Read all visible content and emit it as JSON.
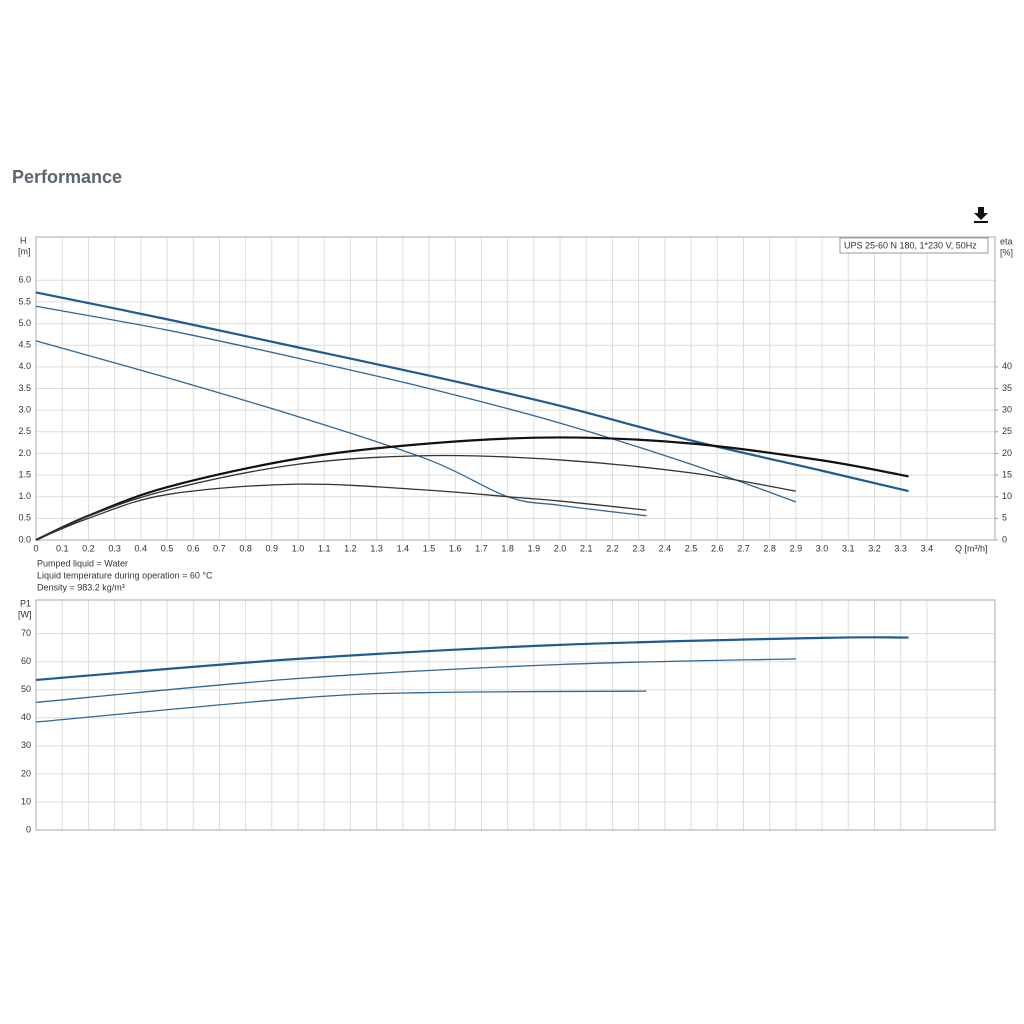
{
  "page": {
    "title": "Performance",
    "notes": [
      "Pumped liquid = Water",
      "Liquid temperature during operation = 60 °C",
      "Density = 983.2 kg/m³"
    ]
  },
  "chart_data": [
    {
      "type": "line",
      "annotation": "UPS 25-60 N 180, 1*230 V, 50Hz",
      "ylabel": "H",
      "yunit": "[m]",
      "y2label": "eta",
      "y2unit": "[%]",
      "xlabel": "Q [m³/h]",
      "xlim": [
        0,
        3.66
      ],
      "ylim": [
        0,
        7
      ],
      "y2lim": [
        0,
        70
      ],
      "grid": true,
      "xticks": [
        0,
        0.1,
        0.2,
        0.3,
        0.4,
        0.5,
        0.6,
        0.7,
        0.8,
        0.9,
        {
          "value": 1,
          "label": "1.0"
        },
        1.1,
        1.2,
        1.3,
        1.4,
        1.5,
        1.6,
        1.7,
        1.8,
        1.9,
        {
          "value": 2,
          "label": "2.0"
        },
        2.1,
        2.2,
        2.3,
        2.4,
        2.5,
        2.6,
        2.7,
        2.8,
        2.9,
        {
          "value": 3,
          "label": "3.0"
        },
        3.1,
        3.2,
        3.3,
        3.4
      ],
      "yticks": [
        {
          "value": 0,
          "label": "0.0"
        },
        0.5,
        {
          "value": 1,
          "label": "1.0"
        },
        1.5,
        {
          "value": 2,
          "label": "2.0"
        },
        2.5,
        {
          "value": 3,
          "label": "3.0"
        },
        3.5,
        {
          "value": 4,
          "label": "4.0"
        },
        4.5,
        {
          "value": 5,
          "label": "5.0"
        },
        5.5,
        {
          "value": 6,
          "label": "6.0"
        }
      ],
      "y2ticks": [
        0,
        5,
        10,
        15,
        20,
        25,
        30,
        35,
        40
      ],
      "series": [
        {
          "color": "#1f5b92",
          "width": 2.2,
          "x": [
            0,
            0.5,
            1,
            1.5,
            2,
            2.5,
            3,
            3.33
          ],
          "values": [
            5.72,
            5.1,
            4.45,
            3.8,
            3.1,
            2.3,
            1.6,
            1.13
          ]
        },
        {
          "color": "#2f6796",
          "width": 1.3,
          "x": [
            0,
            0.5,
            1,
            1.5,
            2,
            2.5,
            2.9
          ],
          "values": [
            5.4,
            4.85,
            4.2,
            3.5,
            2.7,
            1.75,
            0.88
          ]
        },
        {
          "color": "#2f6796",
          "width": 1.3,
          "x": [
            0,
            0.5,
            1,
            1.5,
            1.8,
            2,
            2.33
          ],
          "values": [
            4.6,
            3.75,
            2.85,
            1.85,
            1,
            0.8,
            0.56
          ]
        },
        {
          "color": "#111111",
          "width": 2.2,
          "axis": "y2",
          "x": [
            0,
            0.2,
            0.5,
            1,
            1.5,
            2,
            2.5,
            3,
            3.33
          ],
          "values": [
            0,
            5.6,
            12.2,
            18.8,
            22.3,
            23.7,
            22.3,
            18.4,
            14.7
          ]
        },
        {
          "color": "#333333",
          "width": 1.3,
          "axis": "y2",
          "x": [
            0,
            0.2,
            0.5,
            1,
            1.5,
            2,
            2.5,
            2.9
          ],
          "values": [
            0,
            5.5,
            11.5,
            17.5,
            19.5,
            18.5,
            15.5,
            11.3
          ]
        },
        {
          "color": "#333333",
          "width": 1.3,
          "axis": "y2",
          "x": [
            0,
            0.2,
            0.5,
            1,
            1.5,
            1.8,
            2,
            2.33
          ],
          "values": [
            0,
            5,
            10.5,
            12.9,
            11.5,
            10,
            9,
            6.9
          ]
        }
      ]
    },
    {
      "type": "line",
      "ylabel": "P1",
      "yunit": "[W]",
      "xlim": [
        0,
        3.66
      ],
      "ylim": [
        0,
        82
      ],
      "grid": true,
      "yticks": [
        0,
        10,
        20,
        30,
        40,
        50,
        60,
        70
      ],
      "series": [
        {
          "color": "#1f5b92",
          "width": 2.2,
          "x": [
            0,
            1,
            2,
            3,
            3.33
          ],
          "values": [
            53.5,
            61,
            66,
            68.5,
            68.6
          ]
        },
        {
          "color": "#2f6796",
          "width": 1.3,
          "x": [
            0,
            1,
            2,
            2.9
          ],
          "values": [
            45.5,
            54,
            59,
            61
          ]
        },
        {
          "color": "#2f6796",
          "width": 1.3,
          "x": [
            0,
            1,
            1.5,
            2.33
          ],
          "values": [
            38.5,
            47,
            49,
            49.5
          ]
        }
      ]
    }
  ]
}
